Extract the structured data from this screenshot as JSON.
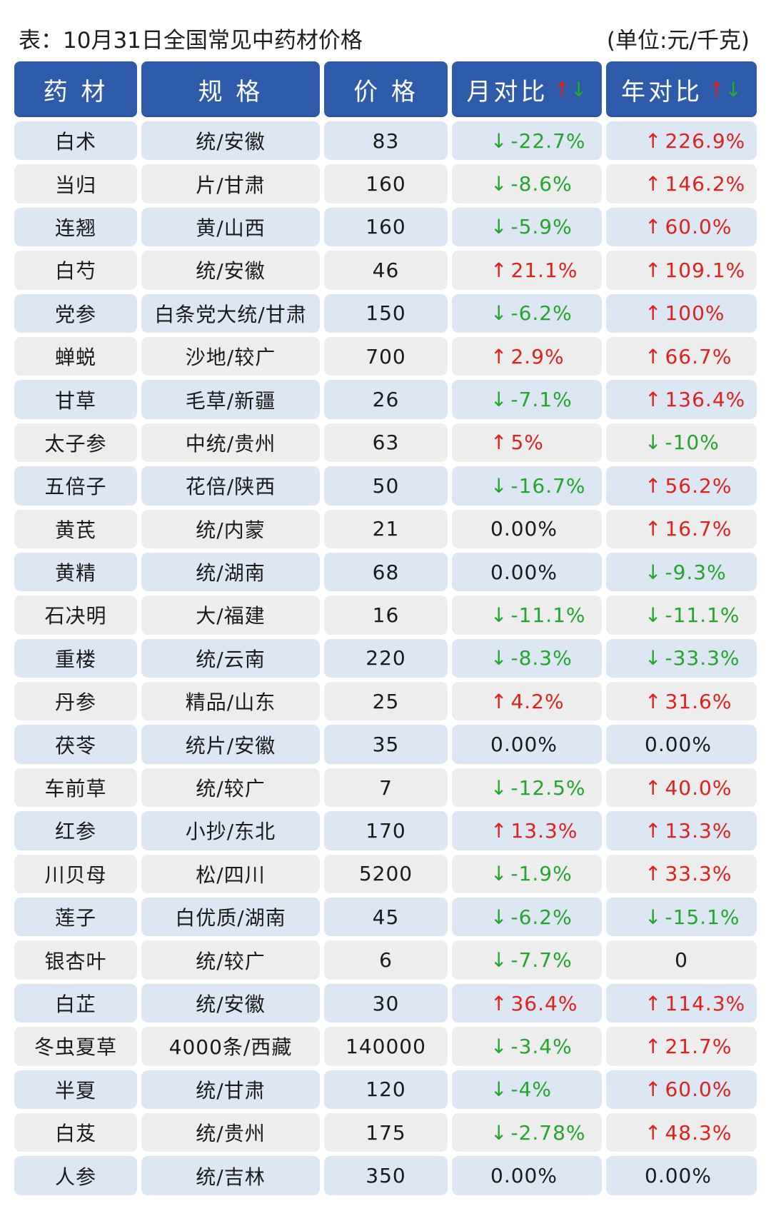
{
  "caption": {
    "left": "表：10月31日全国常见中药材价格",
    "right": "(单位:元/千克)"
  },
  "header": {
    "name": "药 材",
    "spec": "规 格",
    "price": "价 格",
    "month": "月对比",
    "year": "年对比",
    "up_arrow": "↑",
    "down_arrow": "↓"
  },
  "colors": {
    "header_bg": "#2f5bab",
    "row_blue": "#dde7f3",
    "row_gray": "#ededed",
    "up": "#e0201c",
    "down": "#22a52c"
  },
  "rows": [
    {
      "name": "白术",
      "spec": "统/安徽",
      "price": "83",
      "month": {
        "dir": "down",
        "text": "-22.7%"
      },
      "year": {
        "dir": "up",
        "text": "226.9%"
      }
    },
    {
      "name": "当归",
      "spec": "片/甘肃",
      "price": "160",
      "month": {
        "dir": "down",
        "text": "-8.6%"
      },
      "year": {
        "dir": "up",
        "text": "146.2%"
      }
    },
    {
      "name": "连翘",
      "spec": "黄/山西",
      "price": "160",
      "month": {
        "dir": "down",
        "text": "-5.9%"
      },
      "year": {
        "dir": "up",
        "text": "60.0%"
      }
    },
    {
      "name": "白芍",
      "spec": "统/安徽",
      "price": "46",
      "month": {
        "dir": "up",
        "text": "21.1%"
      },
      "year": {
        "dir": "up",
        "text": "109.1%"
      }
    },
    {
      "name": "党参",
      "spec": "白条党大统/甘肃",
      "price": "150",
      "month": {
        "dir": "down",
        "text": "-6.2%"
      },
      "year": {
        "dir": "up",
        "text": "100%"
      }
    },
    {
      "name": "蝉蜕",
      "spec": "沙地/较广",
      "price": "700",
      "month": {
        "dir": "up",
        "text": "2.9%"
      },
      "year": {
        "dir": "up",
        "text": "66.7%"
      }
    },
    {
      "name": "甘草",
      "spec": "毛草/新疆",
      "price": "26",
      "month": {
        "dir": "down",
        "text": "-7.1%"
      },
      "year": {
        "dir": "up",
        "text": "136.4%"
      }
    },
    {
      "name": "太子参",
      "spec": "中统/贵州",
      "price": "63",
      "month": {
        "dir": "up",
        "text": "5%"
      },
      "year": {
        "dir": "down",
        "text": "-10%"
      }
    },
    {
      "name": "五倍子",
      "spec": "花倍/陕西",
      "price": "50",
      "month": {
        "dir": "down",
        "text": "-16.7%"
      },
      "year": {
        "dir": "up",
        "text": "56.2%"
      }
    },
    {
      "name": "黄芪",
      "spec": "统/内蒙",
      "price": "21",
      "month": {
        "dir": "flat",
        "text": "0.00%"
      },
      "year": {
        "dir": "up",
        "text": "16.7%"
      }
    },
    {
      "name": "黄精",
      "spec": "统/湖南",
      "price": "68",
      "month": {
        "dir": "flat",
        "text": "0.00%"
      },
      "year": {
        "dir": "down",
        "text": "-9.3%"
      }
    },
    {
      "name": "石决明",
      "spec": "大/福建",
      "price": "16",
      "month": {
        "dir": "down",
        "text": "-11.1%"
      },
      "year": {
        "dir": "down",
        "text": "-11.1%"
      }
    },
    {
      "name": "重楼",
      "spec": "统/云南",
      "price": "220",
      "month": {
        "dir": "down",
        "text": "-8.3%"
      },
      "year": {
        "dir": "down",
        "text": "-33.3%"
      }
    },
    {
      "name": "丹参",
      "spec": "精品/山东",
      "price": "25",
      "month": {
        "dir": "up",
        "text": "4.2%"
      },
      "year": {
        "dir": "up",
        "text": "31.6%"
      }
    },
    {
      "name": "茯苓",
      "spec": "统片/安徽",
      "price": "35",
      "month": {
        "dir": "flat",
        "text": "0.00%"
      },
      "year": {
        "dir": "flat",
        "text": "0.00%"
      }
    },
    {
      "name": "车前草",
      "spec": "统/较广",
      "price": "7",
      "month": {
        "dir": "down",
        "text": "-12.5%"
      },
      "year": {
        "dir": "up",
        "text": "40.0%"
      }
    },
    {
      "name": "红参",
      "spec": "小抄/东北",
      "price": "170",
      "month": {
        "dir": "up",
        "text": "13.3%"
      },
      "year": {
        "dir": "up",
        "text": "13.3%"
      }
    },
    {
      "name": "川贝母",
      "spec": "松/四川",
      "price": "5200",
      "month": {
        "dir": "down",
        "text": "-1.9%"
      },
      "year": {
        "dir": "up",
        "text": "33.3%"
      }
    },
    {
      "name": "莲子",
      "spec": "白优质/湖南",
      "price": "45",
      "month": {
        "dir": "down",
        "text": "-6.2%"
      },
      "year": {
        "dir": "down",
        "text": "-15.1%"
      }
    },
    {
      "name": "银杏叶",
      "spec": "统/较广",
      "price": "6",
      "month": {
        "dir": "down",
        "text": "-7.7%"
      },
      "year": {
        "dir": "plain",
        "text": "0"
      }
    },
    {
      "name": "白芷",
      "spec": "统/安徽",
      "price": "30",
      "month": {
        "dir": "up",
        "text": "36.4%"
      },
      "year": {
        "dir": "up",
        "text": "114.3%"
      }
    },
    {
      "name": "冬虫夏草",
      "spec": "4000条/西藏",
      "price": "140000",
      "month": {
        "dir": "down",
        "text": "-3.4%"
      },
      "year": {
        "dir": "up",
        "text": "21.7%"
      }
    },
    {
      "name": "半夏",
      "spec": "统/甘肃",
      "price": "120",
      "month": {
        "dir": "down",
        "text": "-4%"
      },
      "year": {
        "dir": "up",
        "text": "60.0%"
      }
    },
    {
      "name": "白芨",
      "spec": "统/贵州",
      "price": "175",
      "month": {
        "dir": "down",
        "text": "-2.78%"
      },
      "year": {
        "dir": "up",
        "text": "48.3%"
      }
    },
    {
      "name": "人参",
      "spec": "统/吉林",
      "price": "350",
      "month": {
        "dir": "flat",
        "text": "0.00%"
      },
      "year": {
        "dir": "flat",
        "text": "0.00%"
      }
    }
  ]
}
